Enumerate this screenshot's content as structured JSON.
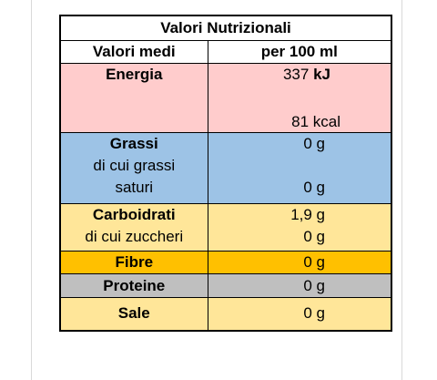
{
  "table": {
    "title": "Valori Nutrizionali",
    "header": {
      "label": "Valori medi",
      "value": "per 100 ml"
    },
    "energia": {
      "label": "Energia",
      "kj_value": "337",
      "kj_unit": "kJ",
      "kcal": "81 kcal"
    },
    "grassi": {
      "label": "Grassi",
      "sub_label_1": "di cui grassi",
      "sub_label_2": "saturi",
      "value": "0 g",
      "sub_value": "0 g"
    },
    "carboidrati": {
      "label": "Carboidrati",
      "sub_label": "di cui zuccheri",
      "value": "1,9 g",
      "sub_value": "0 g"
    },
    "fibre": {
      "label": "Fibre",
      "value": "0 g"
    },
    "proteine": {
      "label": "Proteine",
      "value": "0 g"
    },
    "sale": {
      "label": "Sale",
      "value": "0 g"
    }
  },
  "colors": {
    "energia": "#ffcccc",
    "grassi": "#9dc3e6",
    "carboidrati": "#ffe699",
    "fibre": "#ffc000",
    "proteine": "#bfbfbf",
    "sale": "#ffe699"
  }
}
